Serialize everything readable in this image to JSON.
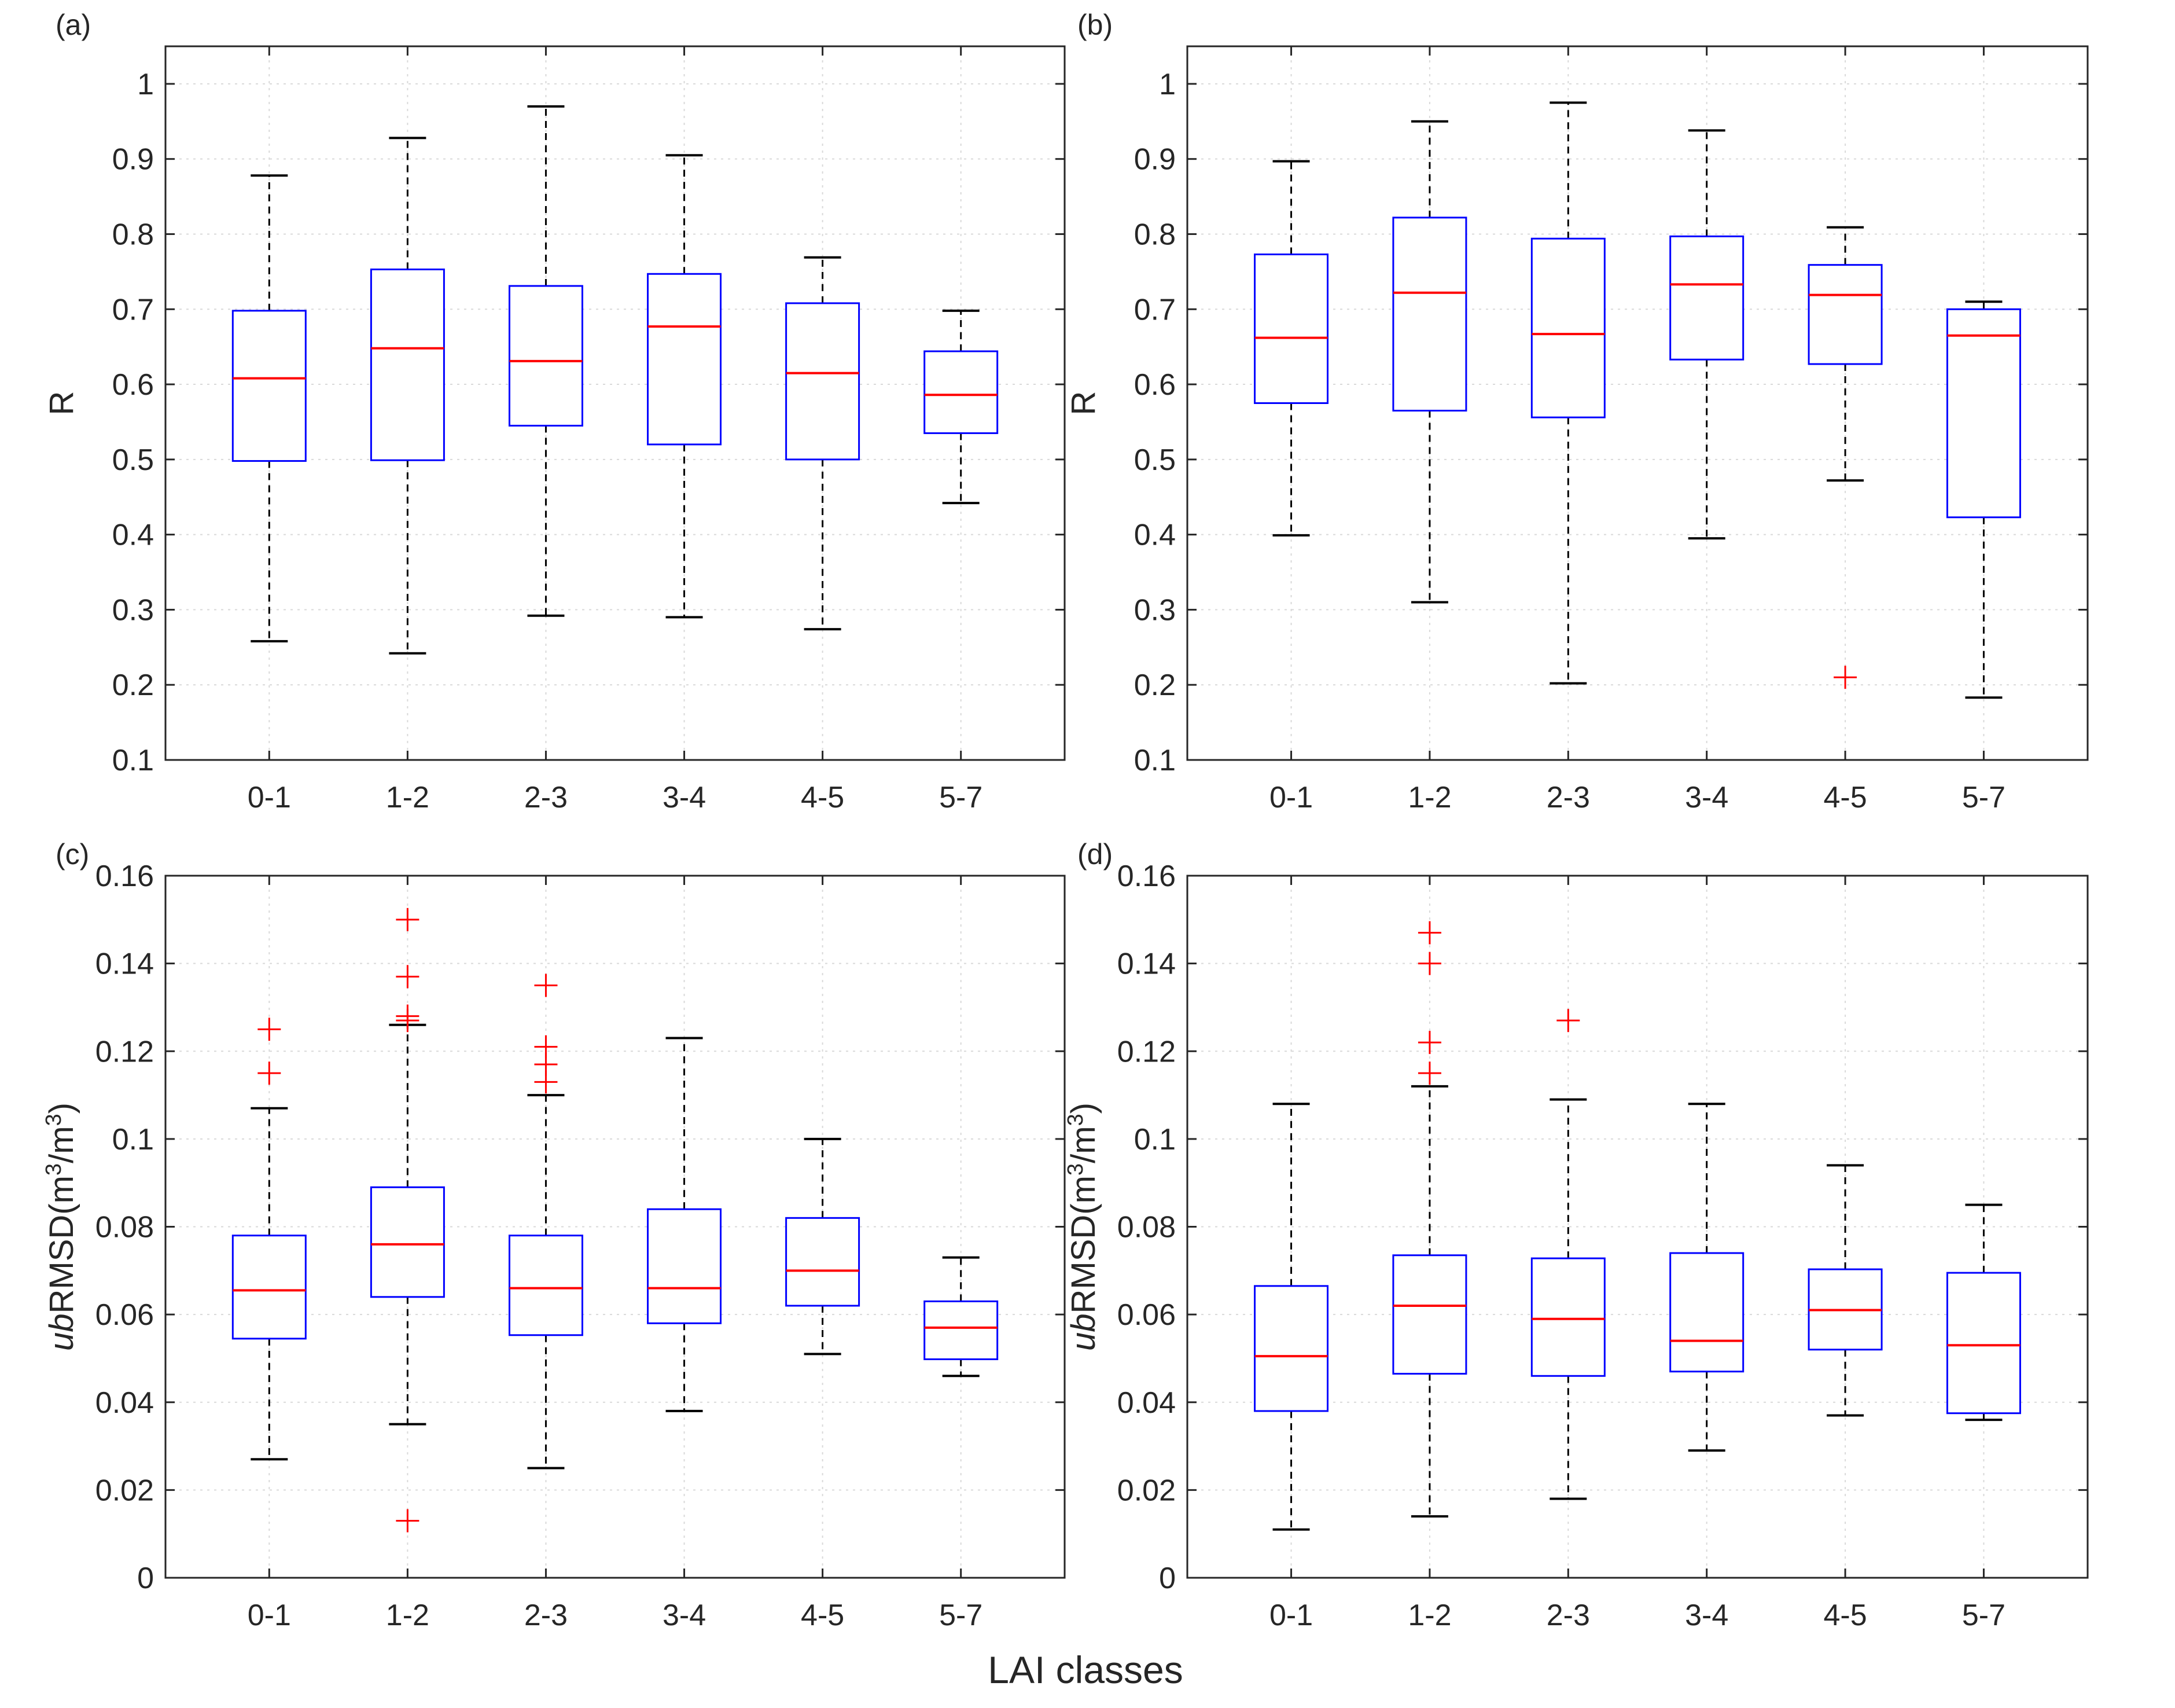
{
  "figure": {
    "xlabel": "LAI classes",
    "colors": {
      "box": "#0000ff",
      "median": "#ff0000",
      "whisker": "#000000",
      "outlier": "#ff0000",
      "grid": "#d9d9d9",
      "axes": "#262626"
    }
  },
  "chart_data": [
    {
      "type": "boxplot",
      "panel": "(a)",
      "ylabel": "R",
      "ylim": [
        0.1,
        1.05
      ],
      "yticks": [
        0.1,
        0.2,
        0.3,
        0.4,
        0.5,
        0.6,
        0.7,
        0.8,
        0.9,
        1
      ],
      "ytick_labels": [
        "0.1",
        "0.2",
        "0.3",
        "0.4",
        "0.5",
        "0.6",
        "0.7",
        "0.8",
        "0.9",
        "1"
      ],
      "categories": [
        "0-1",
        "1-2",
        "2-3",
        "3-4",
        "4-5",
        "5-7"
      ],
      "boxes": [
        {
          "whisker_low": 0.258,
          "q1": 0.498,
          "median": 0.608,
          "q3": 0.698,
          "whisker_high": 0.878,
          "outliers": []
        },
        {
          "whisker_low": 0.242,
          "q1": 0.499,
          "median": 0.648,
          "q3": 0.753,
          "whisker_high": 0.928,
          "outliers": []
        },
        {
          "whisker_low": 0.292,
          "q1": 0.545,
          "median": 0.631,
          "q3": 0.731,
          "whisker_high": 0.97,
          "outliers": []
        },
        {
          "whisker_low": 0.29,
          "q1": 0.52,
          "median": 0.677,
          "q3": 0.747,
          "whisker_high": 0.905,
          "outliers": []
        },
        {
          "whisker_low": 0.274,
          "q1": 0.5,
          "median": 0.615,
          "q3": 0.708,
          "whisker_high": 0.769,
          "outliers": []
        },
        {
          "whisker_low": 0.442,
          "q1": 0.535,
          "median": 0.586,
          "q3": 0.644,
          "whisker_high": 0.698,
          "outliers": []
        }
      ]
    },
    {
      "type": "boxplot",
      "panel": "(b)",
      "ylabel": "R",
      "ylim": [
        0.1,
        1.05
      ],
      "yticks": [
        0.1,
        0.2,
        0.3,
        0.4,
        0.5,
        0.6,
        0.7,
        0.8,
        0.9,
        1
      ],
      "ytick_labels": [
        "0.1",
        "0.2",
        "0.3",
        "0.4",
        "0.5",
        "0.6",
        "0.7",
        "0.8",
        "0.9",
        "1"
      ],
      "categories": [
        "0-1",
        "1-2",
        "2-3",
        "3-4",
        "4-5",
        "5-7"
      ],
      "boxes": [
        {
          "whisker_low": 0.399,
          "q1": 0.575,
          "median": 0.662,
          "q3": 0.773,
          "whisker_high": 0.897,
          "outliers": []
        },
        {
          "whisker_low": 0.31,
          "q1": 0.565,
          "median": 0.722,
          "q3": 0.822,
          "whisker_high": 0.95,
          "outliers": []
        },
        {
          "whisker_low": 0.202,
          "q1": 0.556,
          "median": 0.667,
          "q3": 0.794,
          "whisker_high": 0.975,
          "outliers": []
        },
        {
          "whisker_low": 0.395,
          "q1": 0.633,
          "median": 0.733,
          "q3": 0.797,
          "whisker_high": 0.938,
          "outliers": []
        },
        {
          "whisker_low": 0.472,
          "q1": 0.627,
          "median": 0.719,
          "q3": 0.759,
          "whisker_high": 0.809,
          "outliers": [
            0.21
          ]
        },
        {
          "whisker_low": 0.183,
          "q1": 0.423,
          "median": 0.665,
          "q3": 0.7,
          "whisker_high": 0.71,
          "outliers": []
        }
      ]
    },
    {
      "type": "boxplot",
      "panel": "(c)",
      "ylabel_prefix": "ub",
      "ylabel_main": "RMSD(m",
      "ylabel_mid": "/m",
      "ylabel_end": ")",
      "ylabel_sup": "3",
      "ylim": [
        0,
        0.16
      ],
      "yticks": [
        0,
        0.02,
        0.04,
        0.06,
        0.08,
        0.1,
        0.12,
        0.14,
        0.16
      ],
      "ytick_labels": [
        "0",
        "0.02",
        "0.04",
        "0.06",
        "0.08",
        "0.1",
        "0.12",
        "0.14",
        "0.16"
      ],
      "categories": [
        "0-1",
        "1-2",
        "2-3",
        "3-4",
        "4-5",
        "5-7"
      ],
      "boxes": [
        {
          "whisker_low": 0.027,
          "q1": 0.0545,
          "median": 0.0655,
          "q3": 0.078,
          "whisker_high": 0.107,
          "outliers": [
            0.115,
            0.125
          ]
        },
        {
          "whisker_low": 0.035,
          "q1": 0.064,
          "median": 0.076,
          "q3": 0.089,
          "whisker_high": 0.126,
          "outliers": [
            0.013,
            0.127,
            0.128,
            0.137,
            0.15
          ]
        },
        {
          "whisker_low": 0.025,
          "q1": 0.0553,
          "median": 0.066,
          "q3": 0.078,
          "whisker_high": 0.11,
          "outliers": [
            0.113,
            0.117,
            0.121,
            0.135
          ]
        },
        {
          "whisker_low": 0.038,
          "q1": 0.058,
          "median": 0.066,
          "q3": 0.084,
          "whisker_high": 0.123,
          "outliers": []
        },
        {
          "whisker_low": 0.051,
          "q1": 0.062,
          "median": 0.07,
          "q3": 0.082,
          "whisker_high": 0.1,
          "outliers": []
        },
        {
          "whisker_low": 0.046,
          "q1": 0.0498,
          "median": 0.057,
          "q3": 0.063,
          "whisker_high": 0.073,
          "outliers": []
        }
      ]
    },
    {
      "type": "boxplot",
      "panel": "(d)",
      "ylabel_prefix": "ub",
      "ylabel_main": "RMSD(m",
      "ylabel_mid": "/m",
      "ylabel_end": ")",
      "ylabel_sup": "3",
      "ylim": [
        0,
        0.16
      ],
      "yticks": [
        0,
        0.02,
        0.04,
        0.06,
        0.08,
        0.1,
        0.12,
        0.14,
        0.16
      ],
      "ytick_labels": [
        "0",
        "0.02",
        "0.04",
        "0.06",
        "0.08",
        "0.1",
        "0.12",
        "0.14",
        "0.16"
      ],
      "categories": [
        "0-1",
        "1-2",
        "2-3",
        "3-4",
        "4-5",
        "5-7"
      ],
      "boxes": [
        {
          "whisker_low": 0.011,
          "q1": 0.038,
          "median": 0.0505,
          "q3": 0.0665,
          "whisker_high": 0.108,
          "outliers": []
        },
        {
          "whisker_low": 0.014,
          "q1": 0.0465,
          "median": 0.062,
          "q3": 0.0735,
          "whisker_high": 0.112,
          "outliers": [
            0.115,
            0.122,
            0.14,
            0.147
          ]
        },
        {
          "whisker_low": 0.018,
          "q1": 0.046,
          "median": 0.059,
          "q3": 0.0728,
          "whisker_high": 0.109,
          "outliers": [
            0.127
          ]
        },
        {
          "whisker_low": 0.029,
          "q1": 0.047,
          "median": 0.054,
          "q3": 0.074,
          "whisker_high": 0.108,
          "outliers": []
        },
        {
          "whisker_low": 0.037,
          "q1": 0.052,
          "median": 0.061,
          "q3": 0.0703,
          "whisker_high": 0.094,
          "outliers": []
        },
        {
          "whisker_low": 0.036,
          "q1": 0.0375,
          "median": 0.053,
          "q3": 0.0695,
          "whisker_high": 0.085,
          "outliers": []
        }
      ]
    }
  ]
}
